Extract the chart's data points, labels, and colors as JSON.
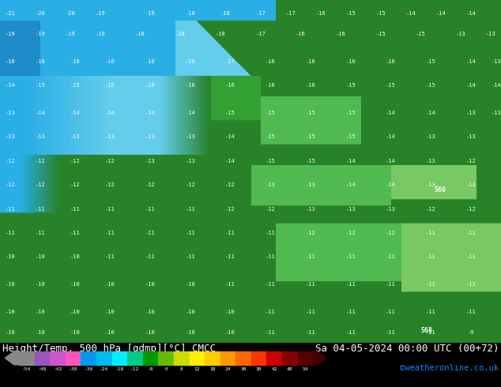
{
  "title_left": "Height/Temp. 500 hPa [gdmp][°C] CMCC",
  "title_right": "Sa 04-05-2024 00:00 UTC (00+72)",
  "credit": "©weatheronline.co.uk",
  "colorbar_labels": [
    "-54",
    "-48",
    "-42",
    "-38",
    "-30",
    "-24",
    "-18",
    "-12",
    "-8",
    "0",
    "8",
    "12",
    "18",
    "24",
    "30",
    "38",
    "42",
    "48",
    "54"
  ],
  "colorbar_colors": [
    "#888888",
    "#9955bb",
    "#cc55cc",
    "#ff55bb",
    "#0099ee",
    "#00bbee",
    "#00eeff",
    "#00cc88",
    "#009900",
    "#66bb00",
    "#ccdd00",
    "#ffee00",
    "#ffcc00",
    "#ff9900",
    "#ff6600",
    "#ff3300",
    "#cc0000",
    "#880000",
    "#550000"
  ],
  "credit_color": "#1188ff",
  "font_size_title": 9,
  "font_size_credit": 7.5,
  "map_colors": {
    "deep_blue": [
      29,
      140,
      200
    ],
    "cyan_blue": [
      41,
      174,
      230
    ],
    "light_cyan": [
      100,
      205,
      235
    ],
    "pale_cyan": [
      140,
      220,
      245
    ],
    "dark_green": [
      40,
      130,
      40
    ],
    "mid_green": [
      50,
      160,
      50
    ],
    "light_green": [
      80,
      185,
      80
    ],
    "pale_green": [
      120,
      200,
      100
    ]
  },
  "contour_numbers_color": "#ffffff",
  "contour_line_color": "#ffffff",
  "bottom_bg": "#000000",
  "fig_bg": "#000000"
}
